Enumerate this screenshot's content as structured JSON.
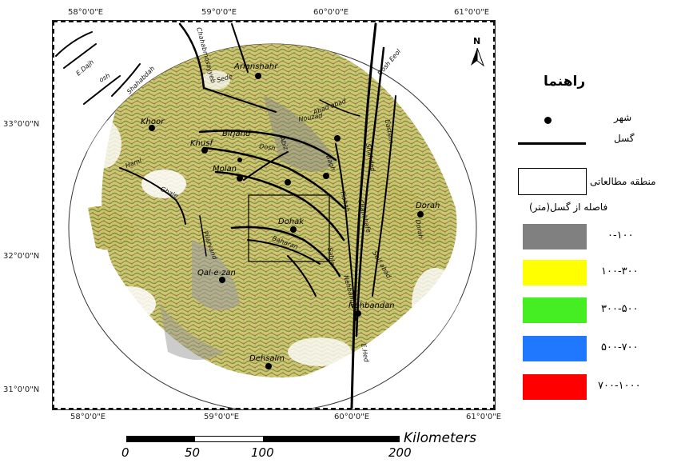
{
  "map": {
    "lon_ticks": [
      "58°0'0\"E",
      "59°0'0\"E",
      "60°0'0\"E",
      "61°0'0\"E"
    ],
    "lat_ticks": [
      "33°0'0\"N",
      "32°0'0\"N",
      "31°0'0\"N"
    ],
    "cities": [
      {
        "name": "Arianshahr"
      },
      {
        "name": "Khoor"
      },
      {
        "name": "Khusf"
      },
      {
        "name": "Birjand"
      },
      {
        "name": "Molan"
      },
      {
        "name": "Dohak"
      },
      {
        "name": "Qal-e-zan"
      },
      {
        "name": "Dorah"
      },
      {
        "name": "Nehbandan"
      },
      {
        "name": "Dehsalm"
      }
    ],
    "fault_labels": [
      "Chahabmosayyeb",
      "Sede",
      "E.Dajh",
      "osh",
      "Shahabdah",
      "Hami",
      "Ghale",
      "Nouzad",
      "Abad abad",
      "Dosh",
      "Abiz",
      "Eastern",
      "Dorah",
      "Shahdad",
      "Pishab",
      "Pilarvand",
      "Bagh",
      "Nehbandan",
      "Chahkhafe",
      "Seif abad",
      "Sahle",
      "E.Hed",
      "Dosh Eeol",
      "Baharan"
    ],
    "north_label": "N"
  },
  "legend": {
    "title": "راهنما",
    "city_label": "شهر",
    "fault_label": "گسل",
    "study_area_label": "منطقه مطالعاتی",
    "distance_title": "فاصله از گسل(متر)",
    "classes": [
      {
        "label": "۰-۱۰۰",
        "color": "#808080"
      },
      {
        "label": "۱۰۰-۳۰۰",
        "color": "#ffff00"
      },
      {
        "label": "۳۰۰-۵۰۰",
        "color": "#44ee22"
      },
      {
        "label": "۵۰۰-۷۰۰",
        "color": "#1f78ff"
      },
      {
        "label": "۷۰۰-۱۰۰۰",
        "color": "#ff0000"
      }
    ]
  },
  "scale_bar": {
    "unit": "Kilometers",
    "labels": [
      "0",
      "50",
      "100",
      "200"
    ]
  }
}
